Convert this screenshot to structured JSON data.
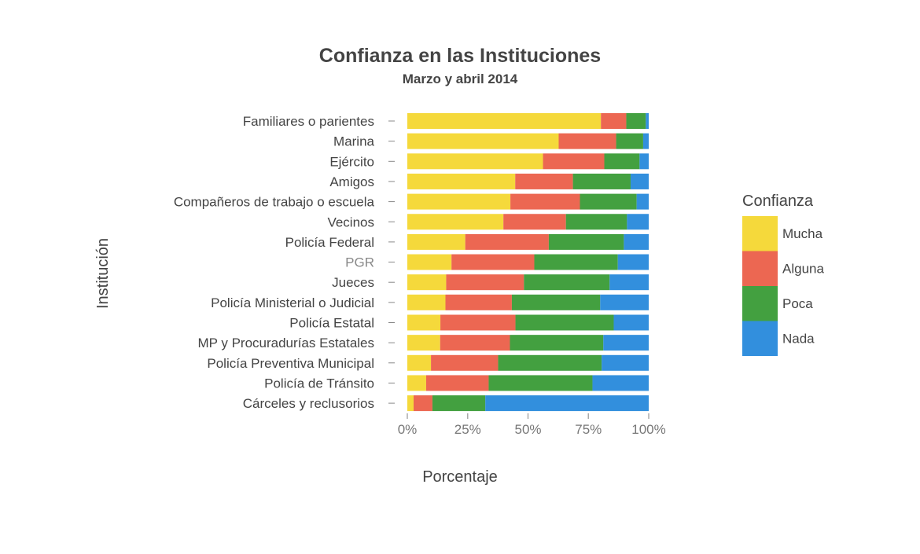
{
  "chart_data": {
    "type": "bar",
    "orientation": "horizontal",
    "stacked": true,
    "title": "Confianza en las Instituciones",
    "subtitle": "Marzo y abril 2014",
    "xlabel": "Porcentaje",
    "ylabel": "Institución",
    "xlim": [
      0,
      100
    ],
    "xticks": [
      "0%",
      "25%",
      "50%",
      "75%",
      "100%"
    ],
    "xtick_values": [
      0,
      25,
      50,
      75,
      100
    ],
    "categories": [
      "Familiares o parientes",
      "Marina",
      "Ejército",
      "Amigos",
      "Compañeros de trabajo o escuela",
      "Vecinos",
      "Policía Federal",
      "PGR",
      "Jueces",
      "Policía Ministerial o Judicial",
      "Policía Estatal",
      "MP y Procuradurías Estatales",
      "Policía Preventiva Municipal",
      "Policía de Tránsito",
      "Cárceles y reclusorios"
    ],
    "highlighted_category": "PGR",
    "legend_title": "Confianza",
    "legend_position": "right",
    "series": [
      {
        "name": "Mucha",
        "color": "#F5D93B",
        "values": [
          80.2,
          62.7,
          56.2,
          44.7,
          42.7,
          39.8,
          24.0,
          18.3,
          16.1,
          15.8,
          13.7,
          13.6,
          9.8,
          7.8,
          2.6
        ]
      },
      {
        "name": "Alguna",
        "color": "#EC6752",
        "values": [
          10.5,
          23.8,
          25.4,
          23.9,
          28.8,
          25.9,
          34.6,
          34.3,
          32.2,
          27.5,
          31.1,
          28.9,
          27.8,
          25.9,
          7.8
        ]
      },
      {
        "name": "Poca",
        "color": "#43A040",
        "values": [
          8.1,
          11.2,
          14.6,
          23.9,
          23.5,
          25.3,
          31.1,
          34.6,
          35.5,
          36.6,
          40.7,
          38.7,
          42.9,
          43.0,
          21.9
        ]
      },
      {
        "name": "Nada",
        "color": "#328FDD",
        "values": [
          1.2,
          2.3,
          3.8,
          7.5,
          5.0,
          9.0,
          10.3,
          12.8,
          16.2,
          20.1,
          14.5,
          18.8,
          19.5,
          23.3,
          67.7
        ]
      }
    ]
  }
}
